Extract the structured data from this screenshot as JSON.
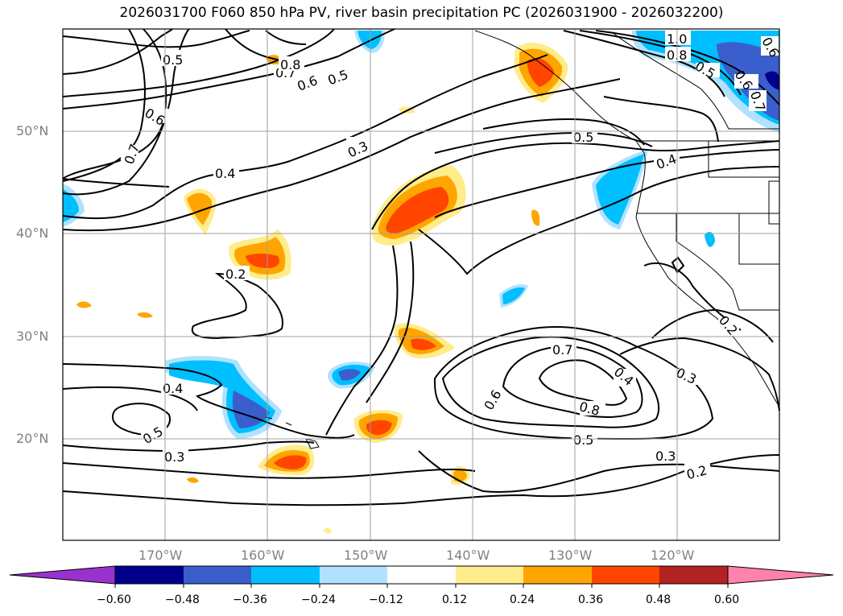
{
  "title": "2026031700 F060 850 hPa PV, river basin precipitation PC (2026031900 - 2026032200)",
  "lat_labels": [
    "50°N",
    "40°N",
    "30°N",
    "20°N"
  ],
  "lon_labels": [
    "170°W",
    "160°W",
    "150°W",
    "140°W",
    "130°W",
    "120°W"
  ],
  "contour_labels": [
    "0.5",
    "0.6",
    "0.7",
    "0.8",
    "1.0",
    "0.6",
    "0.5",
    "0.8",
    "0.6",
    "0.7",
    "0.5",
    "0.6",
    "0.7",
    "0.4",
    "0.3",
    "0.5",
    "0.4",
    "0.2",
    "0.4",
    "0.5",
    "0.3",
    "0.7",
    "0.6",
    "0.8",
    "0.4",
    "0.3",
    "0.5",
    "0.3",
    "0.2",
    "0.2"
  ],
  "colorbar": {
    "ticks": [
      "−0.60",
      "−0.48",
      "−0.36",
      "−0.24",
      "−0.12",
      "0.12",
      "0.24",
      "0.36",
      "0.48",
      "0.60"
    ],
    "colors": [
      "#9932CC",
      "#00008B",
      "#3A5FCD",
      "#00BFFF",
      "#B0E2FF",
      "#FFFFFF",
      "#FFEC8B",
      "#FFA500",
      "#FF4500",
      "#B22222",
      "#FF82AB"
    ]
  }
}
